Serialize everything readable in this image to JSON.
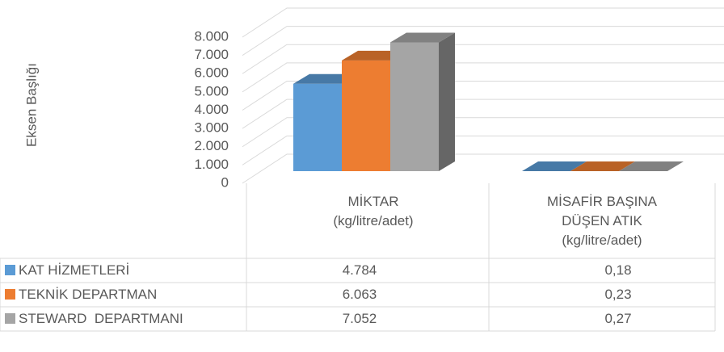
{
  "chart_data": {
    "type": "bar3d",
    "y_axis_label": "Eksen Başlığı",
    "categories": [
      "MİKTAR\n(kg/litre/adet)",
      "MİSAFİR BAŞINA\nDÜŞEN ATIK\n(kg/litre/adet)"
    ],
    "series": [
      {
        "name": "KAT HİZMETLERİ",
        "color": "#5b9bd5",
        "values": [
          4784,
          0.18
        ],
        "value_labels": [
          "4.784",
          "0,18"
        ]
      },
      {
        "name": "TEKNİK DEPARTMAN",
        "color": "#ed7d31",
        "values": [
          6063,
          0.23
        ],
        "value_labels": [
          "6.063",
          "0,23"
        ]
      },
      {
        "name": "STEWARD  DEPARTMANI",
        "color": "#a5a5a5",
        "values": [
          7052,
          0.27
        ],
        "value_labels": [
          "7.052",
          "0,27"
        ]
      }
    ],
    "ylim": [
      0,
      8000
    ],
    "yticks": [
      0,
      {
        "value": 1000,
        "label": "1.000"
      },
      {
        "value": 2000,
        "label": "2.000"
      },
      {
        "value": 3000,
        "label": "3.000"
      },
      {
        "value": 4000,
        "label": "4.000"
      },
      {
        "value": 5000,
        "label": "5.000"
      },
      {
        "value": 6000,
        "label": "6.000"
      },
      {
        "value": 7000,
        "label": "7.000"
      },
      {
        "value": 8000,
        "label": "8.000"
      }
    ],
    "grid": true
  }
}
